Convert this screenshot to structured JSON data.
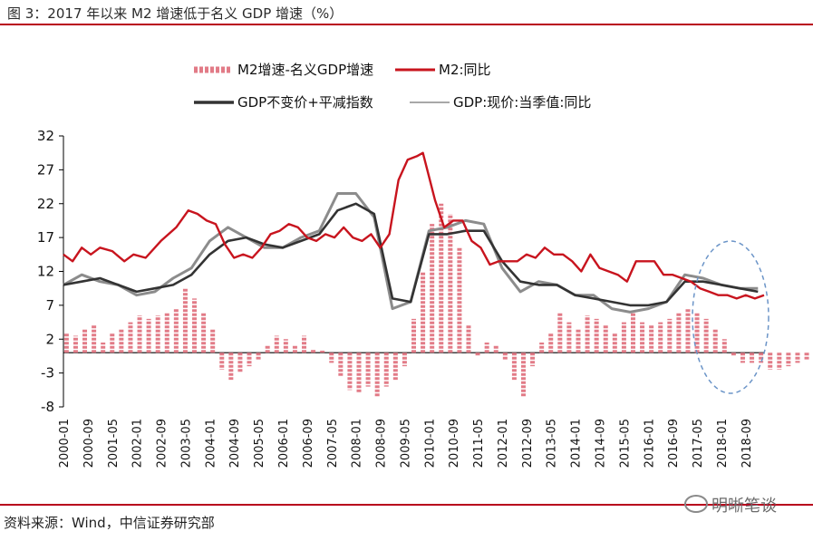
{
  "figure": {
    "title": "图 3：2017 年以来 M2 增速低于名义 GDP 增速（%）",
    "source": "资料来源：Wind，中信证券研究部",
    "watermark": "明晰笔谈"
  },
  "colors": {
    "m2": "#c8141e",
    "gap_bar": "#e27b87",
    "gdp_real_index": "#333333",
    "gdp_nominal": "#8c8c8c",
    "rule": "#b8001c",
    "ellipse": "#6c95c8"
  },
  "chart_data": {
    "type": "line",
    "ylim": [
      -8,
      32
    ],
    "yticks": [
      32,
      27,
      22,
      17,
      12,
      7,
      2,
      -3,
      -8
    ],
    "x_tick_labels": [
      "2000-01",
      "2000-09",
      "2001-05",
      "2002-01",
      "2002-09",
      "2003-05",
      "2004-01",
      "2004-09",
      "2005-05",
      "2006-01",
      "2006-09",
      "2007-05",
      "2008-01",
      "2008-09",
      "2009-05",
      "2010-01",
      "2010-09",
      "2011-05",
      "2012-01",
      "2012-09",
      "2013-05",
      "2014-01",
      "2014-09",
      "2015-05",
      "2016-01",
      "2016-09",
      "2017-05",
      "2018-01",
      "2018-09"
    ],
    "x_start": "2000-01",
    "x_end": "2019-03",
    "legend": [
      "M2增速-名义GDP增速",
      "M2:同比",
      "GDP不变价+平减指数",
      "GDP:现价:当季值:同比"
    ],
    "series": [
      {
        "name": "M2增速-名义GDP增速",
        "type": "bar",
        "frequency": "quarterly",
        "values": [
          3.0,
          2.5,
          3.5,
          4.0,
          1.5,
          3.0,
          3.5,
          4.5,
          5.5,
          5.0,
          5.5,
          6.0,
          6.5,
          9.5,
          8.0,
          6.0,
          3.5,
          -2.5,
          -4.0,
          -3.0,
          -2.0,
          -1.0,
          1.0,
          2.5,
          2.0,
          1.0,
          2.5,
          0.5,
          0.3,
          -1.5,
          -3.5,
          -5.5,
          -6.0,
          -5.0,
          -6.5,
          -5.0,
          -4.0,
          -2.0,
          5.0,
          12.0,
          19.0,
          22.0,
          20.5,
          15.5,
          4.0,
          -0.5,
          1.5,
          1.0,
          -1.0,
          -4.0,
          -6.5,
          -2.0,
          1.5,
          3.0,
          6.0,
          4.5,
          3.5,
          5.5,
          5.0,
          4.0,
          3.0,
          4.5,
          6.0,
          4.5,
          4.0,
          4.5,
          5.0,
          6.0,
          6.5,
          6.0,
          5.0,
          3.5,
          2.0,
          -0.5,
          -1.5,
          -1.5,
          -1.5,
          -2.5,
          -2.5,
          -2.0,
          -1.5,
          -1.0,
          -0.5,
          -1.5
        ]
      },
      {
        "name": "M2:同比",
        "type": "line",
        "frequency": "monthly",
        "anchors": [
          [
            "2000-01",
            14.5
          ],
          [
            "2000-04",
            13.5
          ],
          [
            "2000-07",
            15.5
          ],
          [
            "2000-10",
            14.5
          ],
          [
            "2001-01",
            15.5
          ],
          [
            "2001-05",
            15.0
          ],
          [
            "2001-09",
            13.5
          ],
          [
            "2001-12",
            14.5
          ],
          [
            "2002-04",
            14.0
          ],
          [
            "2002-09",
            16.5
          ],
          [
            "2003-02",
            18.5
          ],
          [
            "2003-06",
            21.0
          ],
          [
            "2003-09",
            20.5
          ],
          [
            "2003-12",
            19.5
          ],
          [
            "2004-03",
            19.0
          ],
          [
            "2004-06",
            16.0
          ],
          [
            "2004-09",
            14.0
          ],
          [
            "2004-12",
            14.5
          ],
          [
            "2005-03",
            14.0
          ],
          [
            "2005-06",
            15.5
          ],
          [
            "2005-09",
            17.5
          ],
          [
            "2005-12",
            18.0
          ],
          [
            "2006-03",
            19.0
          ],
          [
            "2006-06",
            18.5
          ],
          [
            "2006-09",
            17.0
          ],
          [
            "2006-12",
            16.5
          ],
          [
            "2007-03",
            17.5
          ],
          [
            "2007-06",
            17.0
          ],
          [
            "2007-09",
            18.5
          ],
          [
            "2007-12",
            17.0
          ],
          [
            "2008-03",
            16.5
          ],
          [
            "2008-06",
            17.5
          ],
          [
            "2008-09",
            15.5
          ],
          [
            "2008-12",
            17.5
          ],
          [
            "2009-03",
            25.5
          ],
          [
            "2009-06",
            28.5
          ],
          [
            "2009-09",
            29.0
          ],
          [
            "2009-11",
            29.5
          ],
          [
            "2010-01",
            26.0
          ],
          [
            "2010-03",
            22.5
          ],
          [
            "2010-06",
            18.5
          ],
          [
            "2010-09",
            19.5
          ],
          [
            "2010-12",
            19.5
          ],
          [
            "2011-03",
            16.5
          ],
          [
            "2011-06",
            15.5
          ],
          [
            "2011-09",
            13.0
          ],
          [
            "2011-12",
            13.5
          ],
          [
            "2012-03",
            13.5
          ],
          [
            "2012-06",
            13.5
          ],
          [
            "2012-09",
            14.5
          ],
          [
            "2012-12",
            14.0
          ],
          [
            "2013-03",
            15.5
          ],
          [
            "2013-06",
            14.5
          ],
          [
            "2013-09",
            14.5
          ],
          [
            "2013-12",
            13.5
          ],
          [
            "2014-03",
            12.0
          ],
          [
            "2014-06",
            14.5
          ],
          [
            "2014-09",
            12.5
          ],
          [
            "2014-12",
            12.0
          ],
          [
            "2015-03",
            11.5
          ],
          [
            "2015-06",
            10.5
          ],
          [
            "2015-09",
            13.5
          ],
          [
            "2015-12",
            13.5
          ],
          [
            "2016-03",
            13.5
          ],
          [
            "2016-06",
            11.5
          ],
          [
            "2016-09",
            11.5
          ],
          [
            "2016-12",
            11.0
          ],
          [
            "2017-03",
            10.5
          ],
          [
            "2017-06",
            9.5
          ],
          [
            "2017-09",
            9.0
          ],
          [
            "2017-12",
            8.5
          ],
          [
            "2018-03",
            8.5
          ],
          [
            "2018-06",
            8.0
          ],
          [
            "2018-09",
            8.5
          ],
          [
            "2018-12",
            8.0
          ],
          [
            "2019-03",
            8.5
          ]
        ]
      },
      {
        "name": "GDP不变价+平减指数",
        "type": "line",
        "frequency": "quarterly",
        "anchors": [
          [
            "2000-01",
            10.0
          ],
          [
            "2000-07",
            10.5
          ],
          [
            "2001-01",
            11.0
          ],
          [
            "2001-07",
            10.0
          ],
          [
            "2002-01",
            9.0
          ],
          [
            "2002-07",
            9.5
          ],
          [
            "2003-01",
            10.0
          ],
          [
            "2003-07",
            11.5
          ],
          [
            "2004-01",
            14.5
          ],
          [
            "2004-07",
            16.5
          ],
          [
            "2005-01",
            17.0
          ],
          [
            "2005-07",
            16.0
          ],
          [
            "2006-01",
            15.5
          ],
          [
            "2006-07",
            16.5
          ],
          [
            "2007-01",
            17.5
          ],
          [
            "2007-07",
            21.0
          ],
          [
            "2008-01",
            22.0
          ],
          [
            "2008-07",
            20.5
          ],
          [
            "2009-01",
            8.0
          ],
          [
            "2009-07",
            7.5
          ],
          [
            "2010-01",
            17.5
          ],
          [
            "2010-07",
            17.5
          ],
          [
            "2011-01",
            18.0
          ],
          [
            "2011-07",
            18.0
          ],
          [
            "2012-01",
            13.5
          ],
          [
            "2012-07",
            10.5
          ],
          [
            "2013-01",
            10.0
          ],
          [
            "2013-07",
            10.0
          ],
          [
            "2014-01",
            8.5
          ],
          [
            "2014-07",
            8.0
          ],
          [
            "2015-01",
            7.5
          ],
          [
            "2015-07",
            7.0
          ],
          [
            "2016-01",
            7.0
          ],
          [
            "2016-07",
            7.5
          ],
          [
            "2017-01",
            10.5
          ],
          [
            "2017-07",
            10.5
          ],
          [
            "2018-01",
            10.0
          ],
          [
            "2018-07",
            9.5
          ],
          [
            "2019-01",
            9.0
          ]
        ]
      },
      {
        "name": "GDP:现价:当季值:同比",
        "type": "line",
        "frequency": "quarterly",
        "anchors": [
          [
            "2000-01",
            10.0
          ],
          [
            "2000-07",
            11.5
          ],
          [
            "2001-01",
            10.5
          ],
          [
            "2001-07",
            10.0
          ],
          [
            "2002-01",
            8.5
          ],
          [
            "2002-07",
            9.0
          ],
          [
            "2003-01",
            11.0
          ],
          [
            "2003-07",
            12.5
          ],
          [
            "2004-01",
            16.5
          ],
          [
            "2004-07",
            18.5
          ],
          [
            "2005-01",
            17.0
          ],
          [
            "2005-07",
            15.5
          ],
          [
            "2006-01",
            15.5
          ],
          [
            "2006-07",
            17.0
          ],
          [
            "2007-01",
            18.0
          ],
          [
            "2007-07",
            23.5
          ],
          [
            "2008-01",
            23.5
          ],
          [
            "2008-07",
            20.0
          ],
          [
            "2009-01",
            6.5
          ],
          [
            "2009-07",
            7.5
          ],
          [
            "2010-01",
            18.0
          ],
          [
            "2010-07",
            18.5
          ],
          [
            "2011-01",
            19.5
          ],
          [
            "2011-07",
            19.0
          ],
          [
            "2012-01",
            12.5
          ],
          [
            "2012-07",
            9.0
          ],
          [
            "2013-01",
            10.5
          ],
          [
            "2013-07",
            10.0
          ],
          [
            "2014-01",
            8.5
          ],
          [
            "2014-07",
            8.5
          ],
          [
            "2015-01",
            6.5
          ],
          [
            "2015-07",
            6.0
          ],
          [
            "2016-01",
            6.5
          ],
          [
            "2016-07",
            7.5
          ],
          [
            "2017-01",
            11.5
          ],
          [
            "2017-07",
            11.0
          ],
          [
            "2018-01",
            10.0
          ],
          [
            "2018-07",
            9.5
          ],
          [
            "2019-01",
            9.5
          ]
        ]
      }
    ]
  }
}
